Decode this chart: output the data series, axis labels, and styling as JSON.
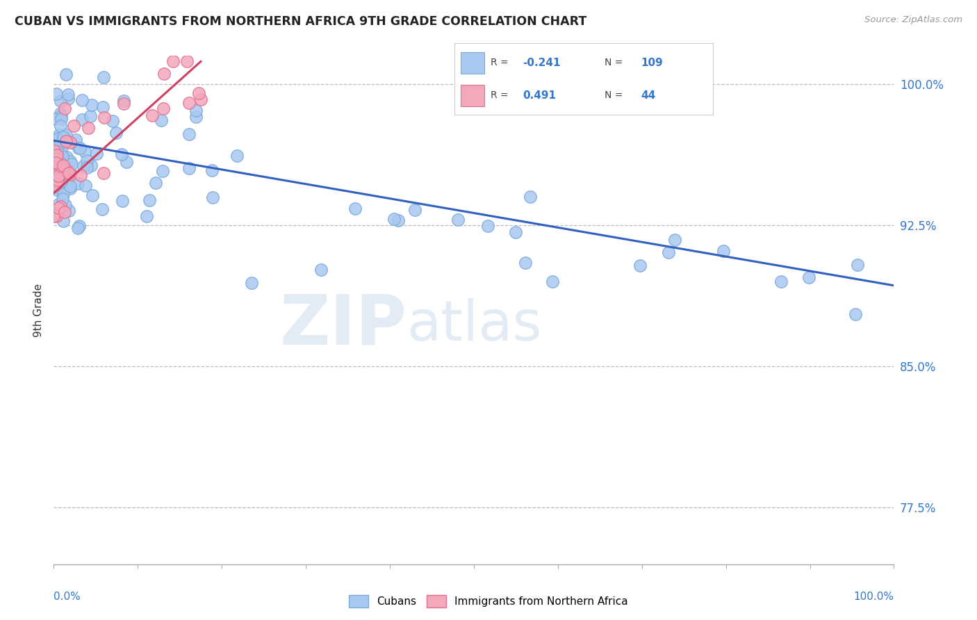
{
  "title": "CUBAN VS IMMIGRANTS FROM NORTHERN AFRICA 9TH GRADE CORRELATION CHART",
  "source_text": "Source: ZipAtlas.com",
  "ylabel": "9th Grade",
  "xlim": [
    0.0,
    1.0
  ],
  "ylim": [
    0.745,
    1.015
  ],
  "yticks": [
    0.775,
    0.85,
    0.925,
    1.0
  ],
  "ytick_labels": [
    "77.5%",
    "85.0%",
    "92.5%",
    "100.0%"
  ],
  "legend_R_blue": "-0.241",
  "legend_N_blue": "109",
  "legend_R_pink": "0.491",
  "legend_N_pink": "44",
  "blue_color": "#A8C8F0",
  "blue_edge_color": "#7AAAD8",
  "pink_color": "#F4A8BC",
  "pink_edge_color": "#E07090",
  "blue_line_color": "#3060C0",
  "pink_line_color": "#D04060",
  "watermark_zip": "ZIP",
  "watermark_atlas": "atlas",
  "grid_color": "#BBBBBB",
  "background_color": "#FFFFFF",
  "blue_trend_x": [
    0.0,
    1.0
  ],
  "blue_trend_y": [
    0.97,
    0.893
  ],
  "pink_trend_x": [
    0.0,
    0.175
  ],
  "pink_trend_y": [
    0.942,
    1.012
  ]
}
